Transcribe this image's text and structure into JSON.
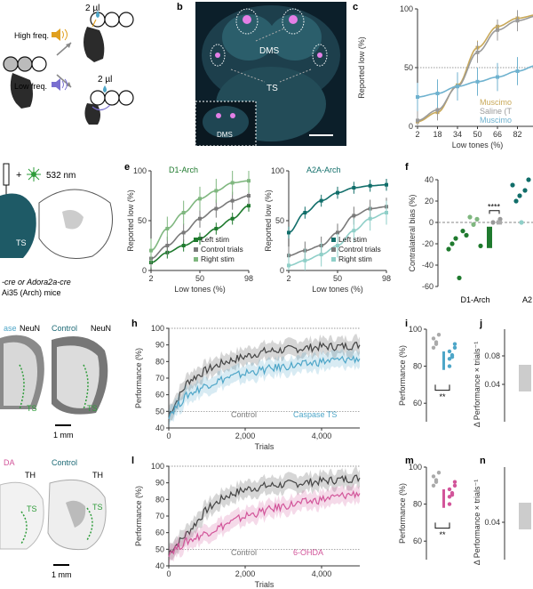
{
  "panel_letters": [
    "b",
    "c",
    "e",
    "f",
    "h",
    "i",
    "j",
    "l",
    "m",
    "n"
  ],
  "panel_a": {
    "dose_top": "2 µl",
    "dose_bottom": "2 µl",
    "high_freq": "High freq.",
    "low_freq": "Low freq."
  },
  "panel_b": {
    "dms": "DMS",
    "ts": "TS",
    "inset_dms": "DMS"
  },
  "panel_c": {
    "xlabel": "Low tones (%)",
    "ylabel": "Reported low (%)",
    "xticks": [
      "2",
      "18",
      "34",
      "50",
      "66",
      "82"
    ],
    "yticks": [
      "0",
      "50",
      "100"
    ],
    "legend": [
      "Muscimo",
      "Saline (T",
      "Muscimo"
    ],
    "colors": [
      "#c9a95a",
      "#9a9a9a",
      "#6fb2cf"
    ]
  },
  "panel_d": {
    "laser": "532 nm",
    "ts": "TS",
    "caption1": "-cre or Adora2a-cre",
    "caption2": "Ai35 (Arch) mice"
  },
  "panel_e1": {
    "title": "D1-Arch",
    "xlabel": "Low tones (%)",
    "ylabel": "Reported low (%)",
    "xticks": [
      "2",
      "50",
      "98"
    ],
    "yticks": [
      "0",
      "50",
      "100"
    ],
    "legend": [
      "Left stim",
      "Control trials",
      "Right stim"
    ],
    "colors": [
      "#1f7a2e",
      "#7a7a7a",
      "#7fb77f"
    ]
  },
  "panel_e2": {
    "title": "A2A-Arch",
    "xlabel": "Low tones (%)",
    "ylabel": "Reported low (%)",
    "xticks": [
      "2",
      "50",
      "98"
    ],
    "yticks": [
      "0",
      "50",
      "100"
    ],
    "legend": [
      "Left stim",
      "Control trials",
      "Right stim"
    ],
    "colors": [
      "#116e6a",
      "#7a7a7a",
      "#8fcfc8"
    ]
  },
  "panel_f": {
    "ylabel": "Contralateral bias (%)",
    "yticks": [
      "40",
      "20",
      "0",
      "-20",
      "-40",
      "-60"
    ],
    "groups": [
      "D1-Arch",
      "A2"
    ],
    "stars": "****"
  },
  "panel_g": {
    "lesion": "ase",
    "control": "Control",
    "neun1": "NeuN",
    "neun2": "NeuN",
    "ts1": "TS",
    "ts2": "TS",
    "scale": "1 mm"
  },
  "panel_h": {
    "ylabel": "Performance (%)",
    "xlabel": "Trials",
    "xticks": [
      "0",
      "2,000",
      "4,000"
    ],
    "yticks": [
      "40",
      "50",
      "60",
      "70",
      "80",
      "90",
      "100"
    ],
    "legend": [
      "Control",
      "Caspase TS"
    ],
    "colors": [
      "#444444",
      "#4ea6c8"
    ]
  },
  "panel_i": {
    "ylabel": "Performance (%)",
    "yticks": [
      "60",
      "80",
      "100"
    ],
    "stars": "**"
  },
  "panel_j": {
    "ylabel": "Δ Performance × trials⁻¹",
    "yticks": [
      "0.04",
      "0.08"
    ]
  },
  "panel_k": {
    "lesion": "DA",
    "control": "Control",
    "th1": "TH",
    "th2": "TH",
    "ts1": "TS",
    "ts2": "TS",
    "scale": "1 mm"
  },
  "panel_l": {
    "ylabel": "Performance (%)",
    "xlabel": "Trials",
    "xticks": [
      "0",
      "2,000",
      "4,000"
    ],
    "yticks": [
      "40",
      "50",
      "60",
      "70",
      "80",
      "90",
      "100"
    ],
    "legend": [
      "Control",
      "6-OHDA"
    ],
    "colors": [
      "#444444",
      "#d2559a"
    ]
  },
  "panel_m": {
    "ylabel": "Performance (%)",
    "yticks": [
      "60",
      "80",
      "100"
    ],
    "stars": "**"
  },
  "panel_n": {
    "ylabel": "Δ Performance × trials⁻¹",
    "yticks": [
      "0.04"
    ]
  },
  "chart_data": [
    {
      "type": "line",
      "panel": "c",
      "x": [
        2,
        18,
        34,
        50,
        66,
        82,
        98
      ],
      "series": [
        {
          "name": "Muscimo",
          "values": [
            4,
            12,
            35,
            67,
            85,
            92,
            95
          ]
        },
        {
          "name": "Saline (T",
          "values": [
            5,
            14,
            34,
            63,
            82,
            90,
            94
          ]
        },
        {
          "name": "Muscimo",
          "values": [
            25,
            28,
            34,
            38,
            42,
            47,
            52
          ]
        }
      ],
      "xlabel": "Low tones (%)",
      "ylabel": "Reported low (%)",
      "ylim": [
        0,
        100
      ]
    },
    {
      "type": "line",
      "panel": "e",
      "title": "D1-Arch",
      "x": [
        2,
        18,
        34,
        50,
        66,
        82,
        98
      ],
      "series": [
        {
          "name": "Left stim",
          "values": [
            8,
            18,
            25,
            32,
            42,
            52,
            65
          ]
        },
        {
          "name": "Control trials",
          "values": [
            12,
            25,
            38,
            52,
            62,
            70,
            75
          ]
        },
        {
          "name": "Right stim",
          "values": [
            20,
            42,
            58,
            72,
            80,
            88,
            90
          ]
        }
      ],
      "xlabel": "Low tones (%)",
      "ylabel": "Reported low (%)",
      "ylim": [
        0,
        100
      ]
    },
    {
      "type": "line",
      "panel": "e",
      "title": "A2A-Arch",
      "x": [
        2,
        18,
        34,
        50,
        66,
        82,
        98
      ],
      "series": [
        {
          "name": "Left stim",
          "values": [
            38,
            58,
            70,
            78,
            83,
            85,
            86
          ]
        },
        {
          "name": "Control trials",
          "values": [
            15,
            20,
            25,
            38,
            55,
            62,
            64
          ]
        },
        {
          "name": "Right stim",
          "values": [
            5,
            10,
            16,
            25,
            40,
            52,
            58
          ]
        }
      ],
      "xlabel": "Low tones (%)",
      "ylabel": "Reported low (%)",
      "ylim": [
        0,
        100
      ]
    },
    {
      "type": "line",
      "panel": "h",
      "x": [
        0,
        500,
        1000,
        1500,
        2000,
        2500,
        3000,
        3500,
        4000,
        4500,
        5000
      ],
      "series": [
        {
          "name": "Control",
          "values": [
            48,
            68,
            75,
            80,
            83,
            86,
            87,
            88,
            89,
            89,
            90
          ]
        },
        {
          "name": "Caspase TS",
          "values": [
            48,
            60,
            66,
            70,
            73,
            75,
            77,
            78,
            80,
            81,
            82
          ]
        }
      ],
      "xlabel": "Trials",
      "ylabel": "Performance (%)",
      "ylim": [
        40,
        100
      ]
    },
    {
      "type": "line",
      "panel": "l",
      "x": [
        0,
        500,
        1000,
        1500,
        2000,
        2500,
        3000,
        3500,
        4000,
        4500,
        5000
      ],
      "series": [
        {
          "name": "Control",
          "values": [
            48,
            60,
            74,
            82,
            86,
            88,
            89,
            90,
            91,
            92,
            93
          ]
        },
        {
          "name": "6-OHDA",
          "values": [
            48,
            55,
            60,
            65,
            70,
            73,
            76,
            78,
            80,
            82,
            84
          ]
        }
      ],
      "xlabel": "Trials",
      "ylabel": "Performance (%)",
      "ylim": [
        40,
        100
      ]
    }
  ]
}
